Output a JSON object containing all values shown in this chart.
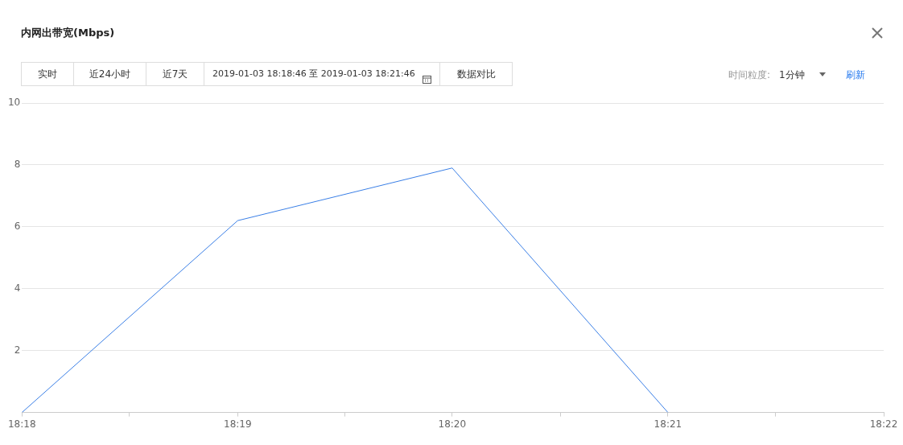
{
  "chart_data": {
    "type": "line",
    "title": "内网出带宽(Mbps)",
    "annotations": [
      "实时",
      "近24小时",
      "近7天",
      "2019-01-03 18:18:46 至 2019-01-03 18:21:46",
      "数据对比",
      "时间粒度:",
      "1分钟",
      "刷新"
    ],
    "x": [
      18.3,
      18.3167,
      18.3333,
      18.35
    ],
    "series": [
      {
        "color": "#3a7fe6",
        "values": [
          0,
          6.2,
          7.9,
          0
        ]
      }
    ],
    "xlim": [
      18.3,
      18.3667
    ],
    "xticks": [
      {
        "value": 18.3,
        "label": "18:18"
      },
      {
        "value": 18.3083,
        "label": null
      },
      {
        "value": 18.3167,
        "label": "18:19"
      },
      {
        "value": 18.325,
        "label": null
      },
      {
        "value": 18.3333,
        "label": "18:20"
      },
      {
        "value": 18.3417,
        "label": null
      },
      {
        "value": 18.35,
        "label": "18:21"
      },
      {
        "value": 18.3583,
        "label": null
      },
      {
        "value": 18.3667,
        "label": "18:22"
      }
    ],
    "ylim": [
      0,
      10
    ],
    "yticks": [
      {
        "value": 0,
        "label": null
      },
      2,
      4,
      6,
      8,
      10
    ],
    "grid": "y",
    "legend": false,
    "marker": "none",
    "line_style": "solid"
  }
}
